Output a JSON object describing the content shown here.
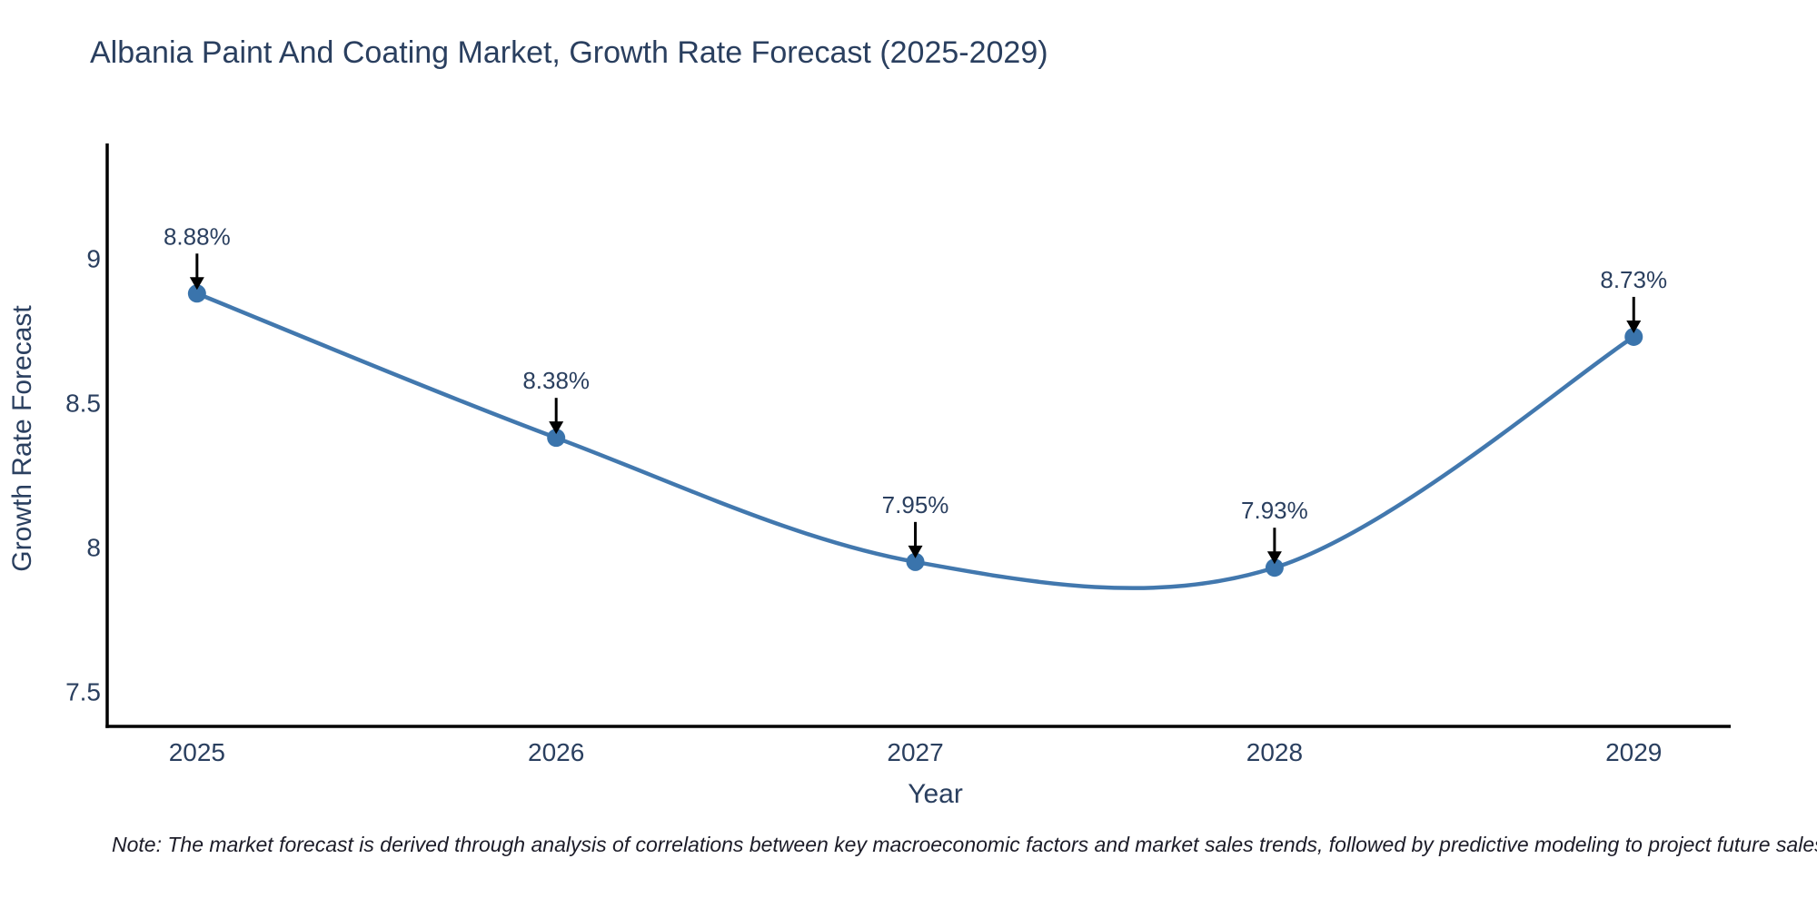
{
  "page": {
    "note": "Note: The market forecast is derived through analysis of correlations between key macroeconomic factors and market sales trends, followed by predictive modeling to project future sales"
  },
  "chart_data": {
    "type": "line",
    "title": "Albania Paint And Coating Market, Growth Rate Forecast (2025-2029)",
    "xlabel": "Year",
    "ylabel": "Growth Rate Forecast",
    "x": [
      2025,
      2026,
      2027,
      2028,
      2029
    ],
    "values": [
      8.88,
      8.38,
      7.95,
      7.93,
      8.73
    ],
    "point_labels": [
      "8.88%",
      "8.38%",
      "7.95%",
      "7.93%",
      "8.73%"
    ],
    "xtick_labels": [
      "2025",
      "2026",
      "2027",
      "2028",
      "2029"
    ],
    "yticks": [
      7.5,
      8,
      8.5,
      9
    ],
    "ytick_labels": [
      "7.5",
      "8",
      "8.5",
      "9"
    ],
    "xlim": [
      2024.75,
      2029.27
    ],
    "ylim": [
      7.38,
      9.4
    ],
    "line_shape": "spline",
    "grid": false,
    "legend": "none",
    "colors": {
      "line": "#4278ae",
      "marker": "#3a74ac",
      "axis": "#000000",
      "text": "#2a3f5f",
      "annotation_text": "#2a3f5f",
      "annotation_arrow": "#000000"
    }
  }
}
